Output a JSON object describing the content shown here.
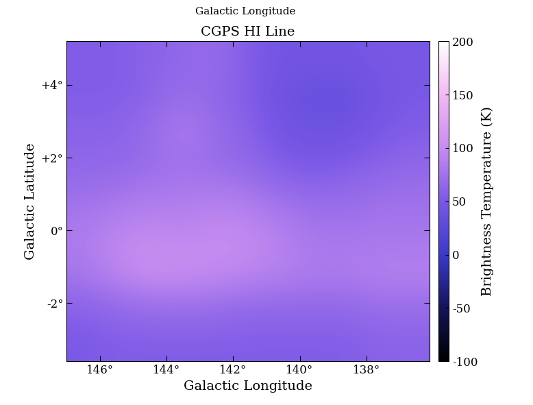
{
  "chart_data": {
    "type": "heatmap",
    "top_label": "Galactic Longitude",
    "title": "CGPS HI Line",
    "x_label": "Galactic Longitude",
    "y_label": "Galactic Latitude",
    "colorbar_label": "Brightness Temperature (K)",
    "xlim": [
      147.0,
      136.1
    ],
    "ylim": [
      -3.6,
      5.2
    ],
    "xticks": [
      {
        "value": 146,
        "label": "146°"
      },
      {
        "value": 144,
        "label": "144°"
      },
      {
        "value": 142,
        "label": "142°"
      },
      {
        "value": 140,
        "label": "140°"
      },
      {
        "value": 138,
        "label": "138°"
      }
    ],
    "yticks": [
      {
        "value": 4,
        "label": "+4°"
      },
      {
        "value": 2,
        "label": "+2°"
      },
      {
        "value": 0,
        "label": "0°"
      },
      {
        "value": -2,
        "label": "-2°"
      }
    ],
    "colorbar_lim": [
      -100,
      200
    ],
    "colorbar_ticks": [
      -100,
      -50,
      0,
      50,
      100,
      150,
      200
    ],
    "cells": [
      [
        55,
        55,
        60,
        65,
        70,
        55,
        45,
        45,
        45,
        50,
        50
      ],
      [
        55,
        55,
        60,
        70,
        65,
        55,
        40,
        35,
        35,
        45,
        50
      ],
      [
        60,
        60,
        70,
        85,
        70,
        60,
        45,
        40,
        40,
        50,
        55
      ],
      [
        65,
        65,
        70,
        75,
        70,
        65,
        55,
        50,
        55,
        60,
        65
      ],
      [
        75,
        80,
        85,
        85,
        90,
        85,
        75,
        70,
        70,
        75,
        75
      ],
      [
        85,
        95,
        100,
        95,
        100,
        100,
        90,
        80,
        80,
        80,
        80
      ],
      [
        80,
        95,
        105,
        105,
        100,
        95,
        90,
        85,
        85,
        90,
        90
      ],
      [
        60,
        65,
        70,
        70,
        70,
        65,
        65,
        65,
        65,
        70,
        70
      ],
      [
        50,
        55,
        55,
        55,
        55,
        55,
        55,
        55,
        55,
        60,
        60
      ]
    ]
  }
}
